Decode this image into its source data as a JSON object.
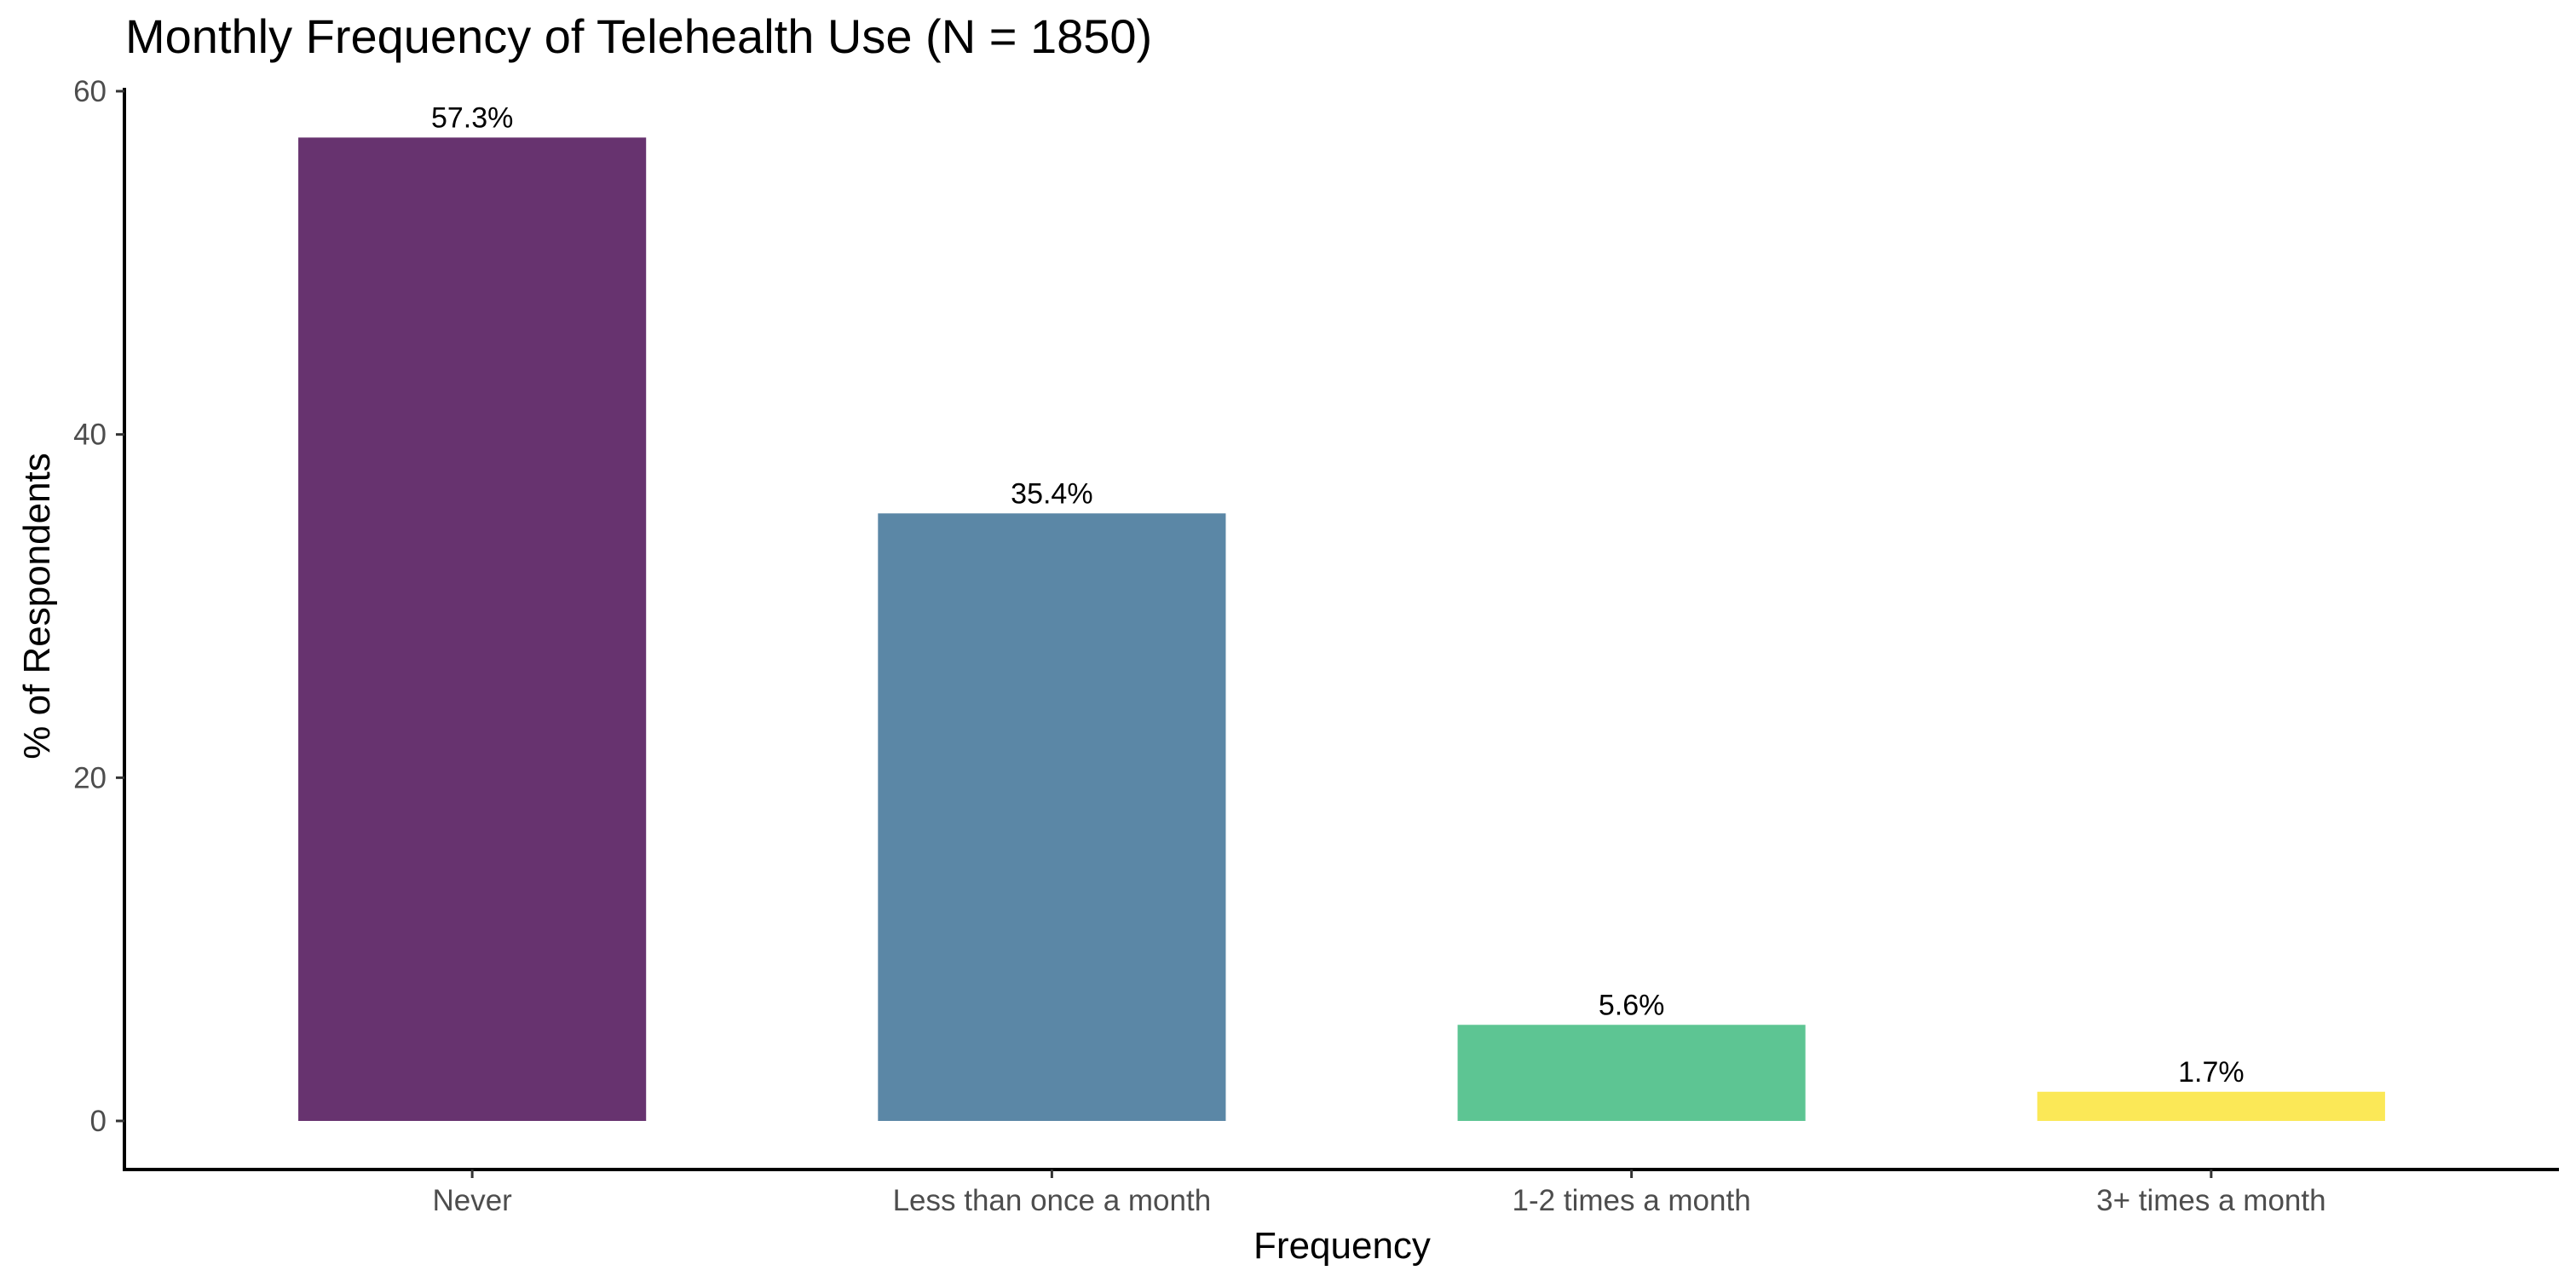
{
  "chart_data": {
    "type": "bar",
    "title": "Monthly Frequency of Telehealth Use (N = 1850)",
    "xlabel": "Frequency",
    "ylabel": "% of Respondents",
    "categories": [
      "Never",
      "Less than once a month",
      "1-2 times a month",
      "3+ times a month"
    ],
    "values": [
      57.3,
      35.4,
      5.6,
      1.7
    ],
    "data_labels": [
      "57.3%",
      "35.4%",
      "5.6%",
      "1.7%"
    ],
    "colors": [
      "#67336f",
      "#5b87a6",
      "#5dc593",
      "#fbe857"
    ],
    "ylim": [
      0,
      60
    ],
    "yticks": [
      0,
      20,
      40,
      60
    ],
    "ytick_labels": [
      "0",
      "20",
      "40",
      "60"
    ],
    "grid": false,
    "legend": "none"
  }
}
